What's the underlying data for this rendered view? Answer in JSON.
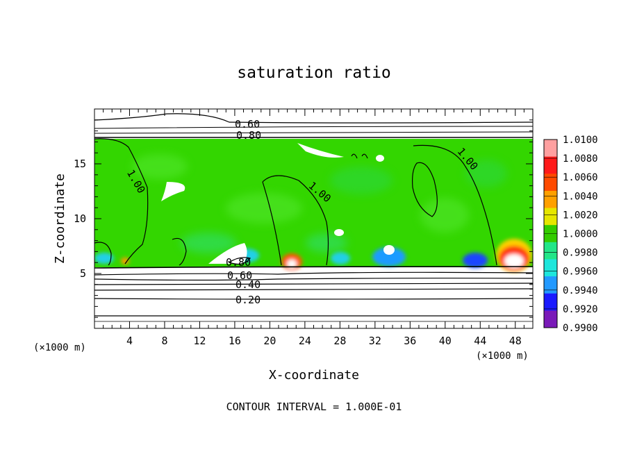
{
  "chart_data": {
    "type": "heatmap",
    "title": "saturation ratio",
    "xlabel": "X-coordinate",
    "ylabel": "Z-coordinate",
    "x_unit_label": "(×1000 m)",
    "x_unit_label_right": "(×1000 m)",
    "xlim": [
      0,
      50
    ],
    "ylim": [
      0,
      20
    ],
    "x_ticks": [
      "4",
      "8",
      "12",
      "16",
      "20",
      "24",
      "28",
      "32",
      "36",
      "40",
      "44",
      "48"
    ],
    "y_ticks": [
      "5",
      "10",
      "15"
    ],
    "colorbar": {
      "levels": [
        "1.0100",
        "1.0080",
        "1.0060",
        "1.0040",
        "1.0020",
        "1.0000",
        "0.9980",
        "0.9960",
        "0.9940",
        "0.9920",
        "0.9900"
      ],
      "colors": [
        "#ffa0a0",
        "#ff1a1a",
        "#ff4a00",
        "#ffa000",
        "#e6e600",
        "#33cc00",
        "#22e688",
        "#1ee6dc",
        "#2299ff",
        "#1a1aff",
        "#7a1ab8"
      ]
    },
    "contour_labels": [
      "0.60",
      "0.80",
      "1.00",
      "1.00",
      "1.00",
      "0.80",
      "0.60",
      "0.40",
      "0.20"
    ],
    "contour_interval": "CONTOUR INTERVAL = 1.000E-01"
  }
}
